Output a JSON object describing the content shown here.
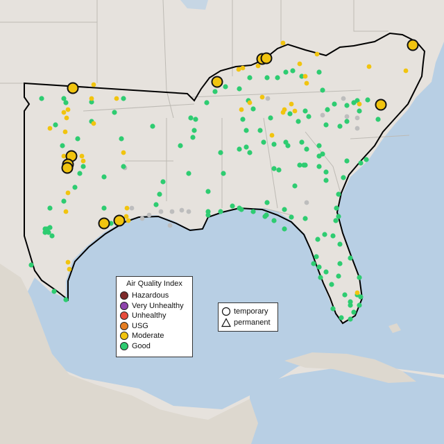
{
  "legend": {
    "title": "Air Quality Index",
    "items": [
      {
        "label": "Hazardous",
        "color": "#7e2a2a"
      },
      {
        "label": "Very Unhealthy",
        "color": "#8e44ad"
      },
      {
        "label": "Unhealthy",
        "color": "#e74c3c"
      },
      {
        "label": "USG",
        "color": "#e67e22"
      },
      {
        "label": "Moderate",
        "color": "#f1c40f"
      },
      {
        "label": "Good",
        "color": "#2ecc71"
      }
    ]
  },
  "type_legend": {
    "items": [
      {
        "label": "temporary",
        "icon": "circle-outline-icon"
      },
      {
        "label": "permanent",
        "icon": "triangle-outline-icon"
      }
    ]
  },
  "colors": {
    "land": "#e6e2dd",
    "water": "#b8cfe4",
    "no_data": "#bdbdbd",
    "border": "#000000"
  },
  "map": {
    "region": "Southeastern United States (EPA Region 4 and 6 subset)",
    "large_markers": [
      {
        "category": "Moderate"
      },
      {
        "category": "Moderate"
      },
      {
        "category": "Moderate"
      },
      {
        "category": "Moderate"
      },
      {
        "category": "Moderate"
      },
      {
        "category": "Moderate"
      },
      {
        "category": "Moderate"
      },
      {
        "category": "Moderate"
      },
      {
        "category": "Moderate"
      },
      {
        "category": "Moderate"
      },
      {
        "category": "Moderate"
      }
    ]
  }
}
